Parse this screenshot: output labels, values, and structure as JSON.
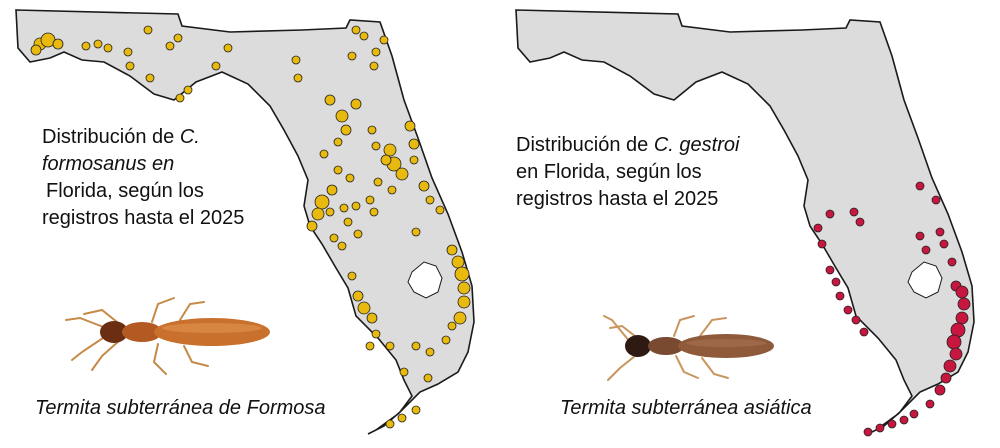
{
  "maps": [
    {
      "caption": {
        "line1_text": "Distribución de ",
        "line1_species": "C.",
        "line2_species": "formosanus en",
        "line3_text": "Florida, según los",
        "line4_text": "registros hasta el 2025"
      },
      "species_label": "Termita subterránea de Formosa",
      "marker_color": "#E8B90E"
    },
    {
      "caption": {
        "line1_text": "Distribución de ",
        "line1_species": "C. gestroi",
        "line2_text": "en Florida, según los",
        "line3_text": "registros hasta el 2025"
      },
      "species_label": "Termita subterránea asiática",
      "marker_color": "#C8173F"
    }
  ],
  "colors": {
    "land": "#DCDCDC",
    "outline": "#1A1A1A",
    "lake": "#FFFFFF"
  },
  "icons": [
    "termite-icon"
  ]
}
